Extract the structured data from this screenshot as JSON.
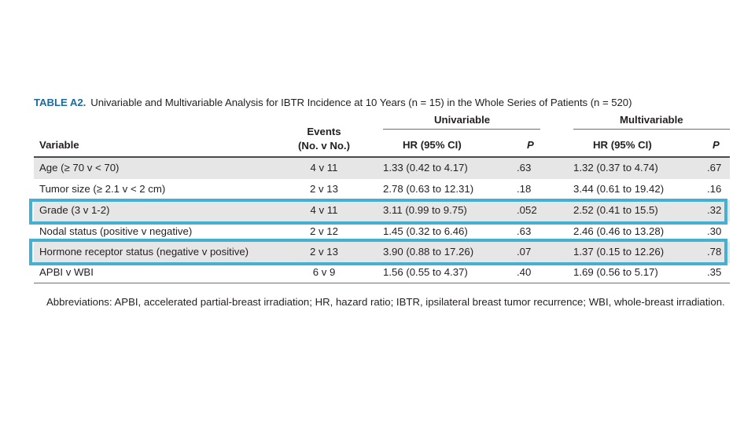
{
  "caption": {
    "label": "TABLE A2.",
    "text": "Univariable and Multivariable Analysis for IBTR Incidence at 10 Years (n = 15) in the Whole Series of Patients (n = 520)"
  },
  "headers": {
    "group_univariable": "Univariable",
    "group_multivariable": "Multivariable",
    "events_line1": "Events",
    "events_line2": "(No. v No.)",
    "variable": "Variable",
    "hr": "HR (95% CI)",
    "p": "P"
  },
  "rows": [
    {
      "variable": "Age (≥ 70 v < 70)",
      "events": "4 v 11",
      "uni_hr": "1.33 (0.42 to 4.17)",
      "uni_p": ".63",
      "multi_hr": "1.32 (0.37 to 4.74)",
      "multi_p": ".67"
    },
    {
      "variable": "Tumor size (≥ 2.1 v < 2 cm)",
      "events": "2 v 13",
      "uni_hr": "2.78 (0.63 to 12.31)",
      "uni_p": ".18",
      "multi_hr": "3.44 (0.61 to 19.42)",
      "multi_p": ".16"
    },
    {
      "variable": "Grade (3 v 1-2)",
      "events": "4 v 11",
      "uni_hr": "3.11 (0.99 to 9.75)",
      "uni_p": ".052",
      "multi_hr": "2.52 (0.41 to 15.5)",
      "multi_p": ".32"
    },
    {
      "variable": "Nodal status (positive v negative)",
      "events": "2 v 12",
      "uni_hr": "1.45 (0.32 to 6.46)",
      "uni_p": ".63",
      "multi_hr": "2.46 (0.46 to 13.28)",
      "multi_p": ".30"
    },
    {
      "variable": "Hormone receptor status (negative v positive)",
      "events": "2 v 13",
      "uni_hr": "3.90 (0.88 to 17.26)",
      "uni_p": ".07",
      "multi_hr": "1.37 (0.15 to 12.26)",
      "multi_p": ".78"
    },
    {
      "variable": "APBI v WBI",
      "events": "6 v 9",
      "uni_hr": "1.56 (0.55 to 4.37)",
      "uni_p": ".40",
      "multi_hr": "1.69 (0.56 to 5.17)",
      "multi_p": ".35"
    }
  ],
  "footnote": "Abbreviations: APBI, accelerated partial-breast irradiation; HR, hazard ratio; IBTR, ipsilateral breast tumor recurrence; WBI, whole-breast irradiation.",
  "colors": {
    "caption_label": "#1f6a9c",
    "row_shade": "#e7e6e6",
    "highlight_box": "#45b0cf"
  }
}
